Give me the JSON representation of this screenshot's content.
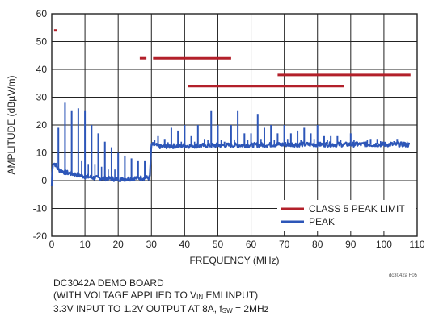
{
  "chart_data": {
    "type": "line",
    "title": "",
    "xlabel": "FREQUENCY (MHz)",
    "ylabel": "AMPLITUDE (dBµV/m)",
    "xlim": [
      0,
      110
    ],
    "ylim": [
      -20,
      60
    ],
    "x_ticks": [
      0,
      10,
      20,
      30,
      40,
      50,
      60,
      70,
      80,
      90,
      100,
      110
    ],
    "y_ticks": [
      -20,
      -10,
      0,
      10,
      20,
      30,
      40,
      50,
      60
    ],
    "grid": true,
    "legend_position": "bottom-right",
    "colors": {
      "limit": "#b3202a",
      "peak": "#2d56b8"
    },
    "series": [
      {
        "name": "CLASS 5 PEAK LIMIT",
        "kind": "step-segments",
        "segments": [
          {
            "x": [
              0.7,
              1.7
            ],
            "y": 54
          },
          {
            "x": [
              26.5,
              28.5
            ],
            "y": 44
          },
          {
            "x": [
              30.5,
              54
            ],
            "y": 44
          },
          {
            "x": [
              41,
              88
            ],
            "y": 34
          },
          {
            "x": [
              68,
              108
            ],
            "y": 38
          }
        ]
      },
      {
        "name": "PEAK",
        "baseline": [
          [
            0,
            -2
          ],
          [
            0.3,
            6.5
          ],
          [
            1,
            6
          ],
          [
            2,
            4
          ],
          [
            4,
            3
          ],
          [
            6,
            2.5
          ],
          [
            8,
            2
          ],
          [
            10,
            1.5
          ],
          [
            13,
            1
          ],
          [
            16,
            0.8
          ],
          [
            20,
            0.5
          ],
          [
            24,
            0.8
          ],
          [
            27,
            1
          ],
          [
            29.5,
            1
          ],
          [
            30,
            13
          ],
          [
            33,
            12.2
          ],
          [
            36,
            12.4
          ],
          [
            40,
            12.5
          ],
          [
            45,
            12.6
          ],
          [
            50,
            12.7
          ],
          [
            55,
            12.7
          ],
          [
            60,
            12.8
          ],
          [
            65,
            12.9
          ],
          [
            70,
            13
          ],
          [
            75,
            13
          ],
          [
            80,
            13
          ],
          [
            85,
            13
          ],
          [
            90,
            13
          ],
          [
            95,
            13
          ],
          [
            100,
            13
          ],
          [
            105,
            13
          ],
          [
            108,
            12.8
          ]
        ],
        "spikes": [
          [
            2,
            19
          ],
          [
            4,
            28
          ],
          [
            6,
            25
          ],
          [
            8,
            26
          ],
          [
            10,
            25
          ],
          [
            12,
            20
          ],
          [
            14,
            17
          ],
          [
            16,
            14
          ],
          [
            18,
            12
          ],
          [
            20,
            10
          ],
          [
            22,
            9
          ],
          [
            24,
            8
          ],
          [
            26,
            7
          ],
          [
            28,
            7
          ],
          [
            32,
            16
          ],
          [
            34,
            15
          ],
          [
            36,
            19
          ],
          [
            38,
            18
          ],
          [
            40,
            20
          ],
          [
            42,
            16
          ],
          [
            44,
            20
          ],
          [
            46,
            15
          ],
          [
            48,
            25
          ],
          [
            50,
            20
          ],
          [
            52,
            14
          ],
          [
            54,
            20
          ],
          [
            56,
            25
          ],
          [
            58,
            17
          ],
          [
            60,
            17
          ],
          [
            62,
            24
          ],
          [
            64,
            19
          ],
          [
            66,
            20
          ],
          [
            68,
            17
          ],
          [
            70,
            20
          ],
          [
            72,
            17
          ],
          [
            74,
            18
          ],
          [
            76,
            19
          ],
          [
            78,
            17
          ],
          [
            80,
            20
          ],
          [
            82,
            16
          ],
          [
            84,
            16
          ],
          [
            86,
            16
          ],
          [
            90,
            17
          ],
          [
            92,
            14
          ],
          [
            94,
            14
          ],
          [
            96,
            15
          ],
          [
            98,
            15
          ],
          [
            100,
            14
          ],
          [
            102,
            14
          ],
          [
            104,
            15
          ],
          [
            106,
            14
          ]
        ],
        "small_spikes": [
          [
            9,
            7
          ],
          [
            11,
            6
          ],
          [
            13,
            6
          ],
          [
            15,
            5
          ],
          [
            17,
            4
          ],
          [
            19,
            4
          ],
          [
            31,
            14.5
          ],
          [
            35,
            13.8
          ],
          [
            39,
            14
          ],
          [
            43,
            14
          ],
          [
            47,
            14.5
          ],
          [
            51,
            14.5
          ],
          [
            55,
            14.8
          ],
          [
            59,
            14.5
          ],
          [
            63,
            15
          ],
          [
            67,
            14.5
          ],
          [
            71,
            15
          ],
          [
            75,
            14.5
          ],
          [
            79,
            15
          ],
          [
            83,
            14.5
          ],
          [
            87,
            14.5
          ],
          [
            91,
            14.5
          ],
          [
            95,
            14.5
          ],
          [
            99,
            14.2
          ],
          [
            103,
            14.2
          ],
          [
            107,
            14
          ]
        ]
      }
    ],
    "annotation": "dc3042a F05"
  },
  "caption": {
    "line1": "DC3042A DEMO BOARD",
    "line2_pre": "(WITH VOLTAGE APPLIED TO V",
    "line2_sub": "IN",
    "line2_post": " EMI INPUT)",
    "line3_pre": "3.3V INPUT TO 1.2V OUTPUT AT 8A, f",
    "line3_sub": "SW",
    "line3_post": " = 2MHz"
  }
}
